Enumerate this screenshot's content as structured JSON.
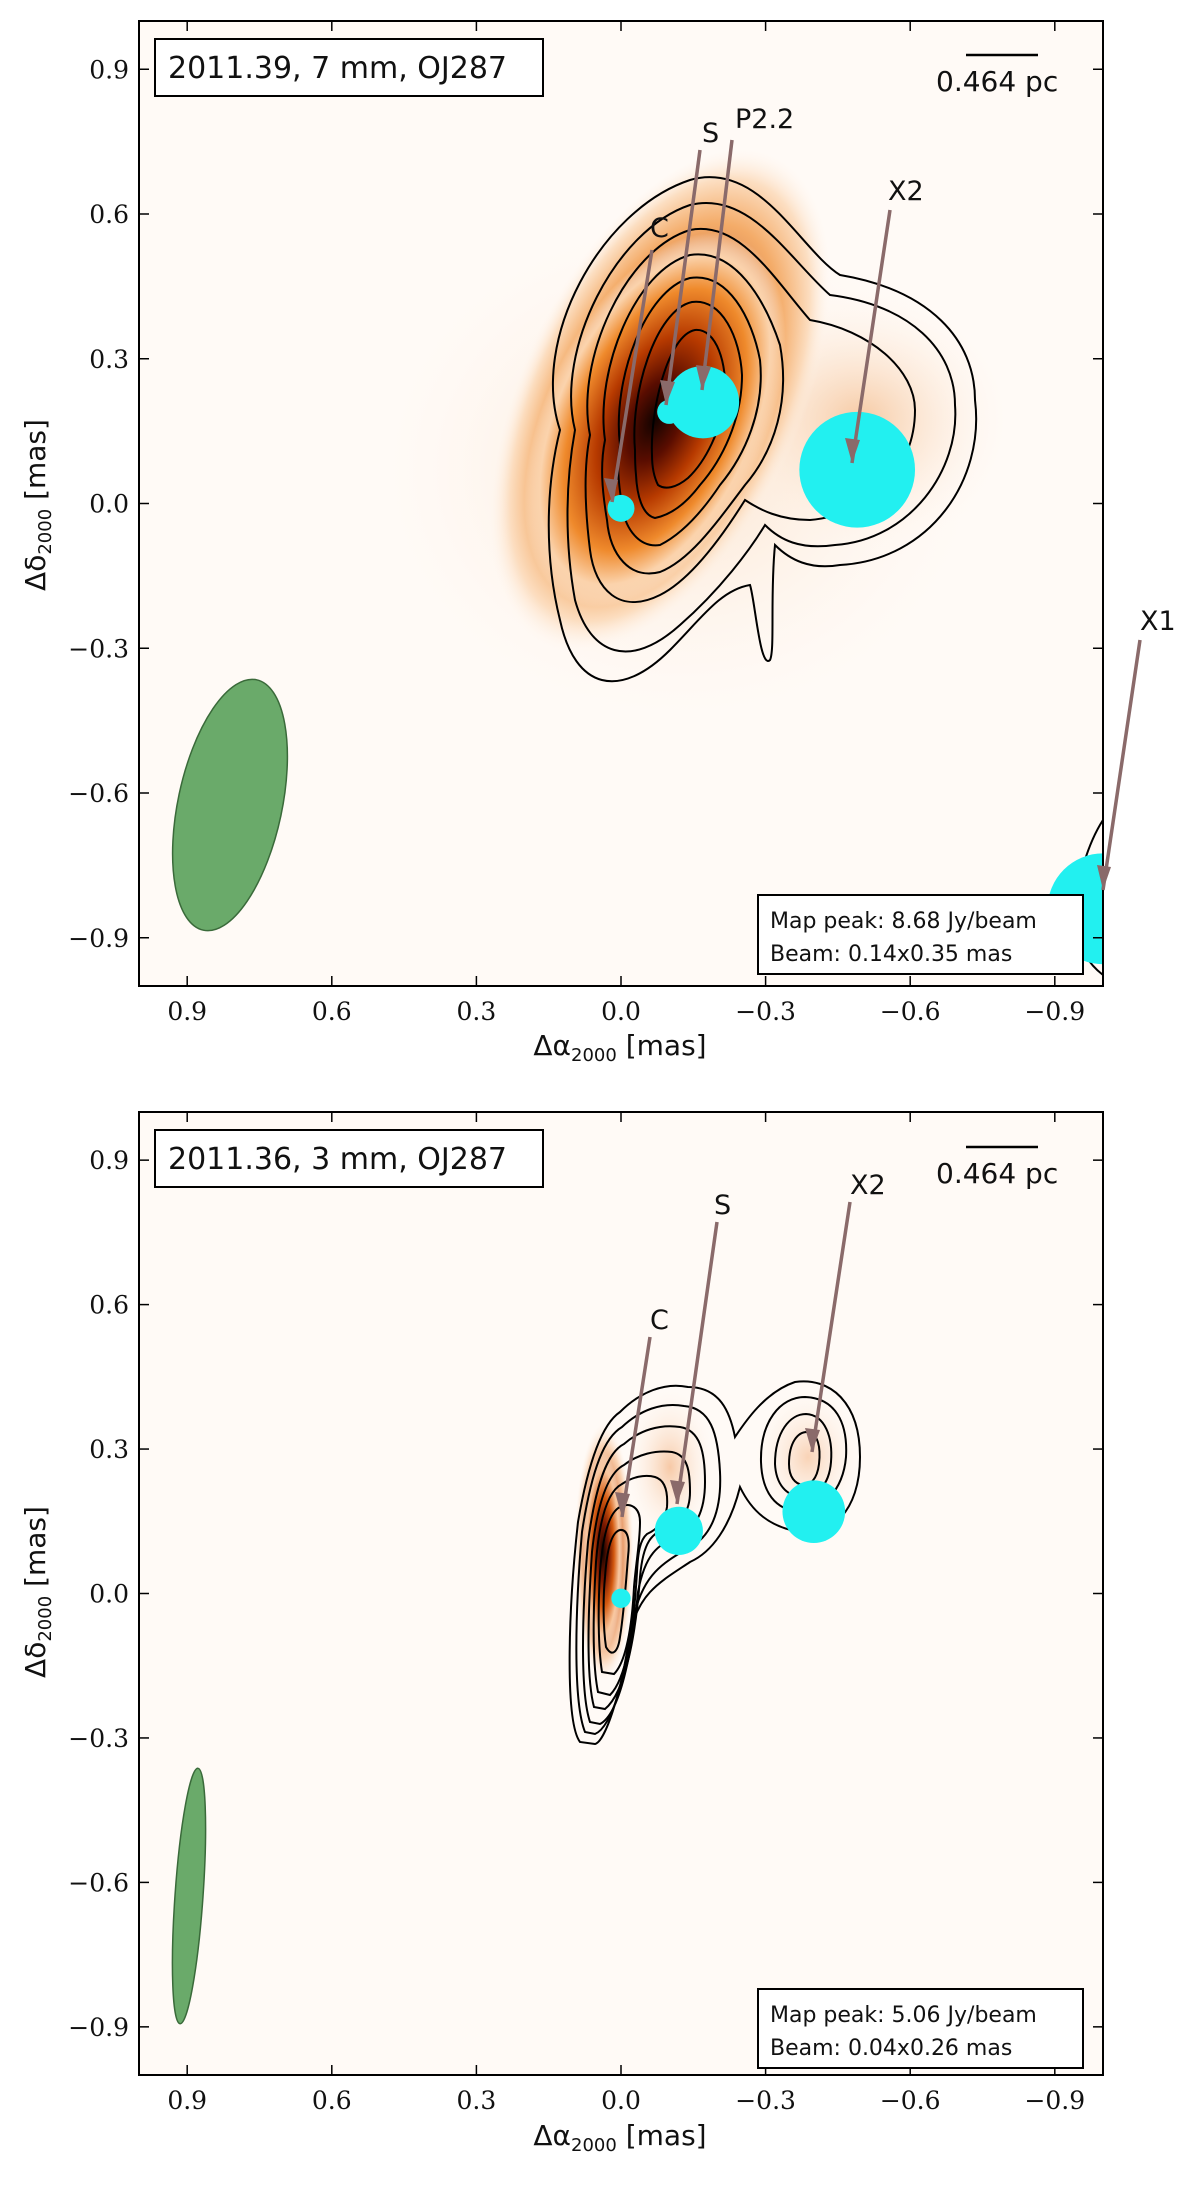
{
  "chart_data": [
    {
      "type": "heatmap",
      "title": "2011.39,  7 mm,  OJ287",
      "scale_bar": "0.464 pc",
      "map_peak": "Map peak: 8.68 Jy/beam",
      "beam": "Beam: 0.14x0.35 mas",
      "xlabel": "Δα2000 [mas]",
      "ylabel": "Δδ2000 [mas]",
      "xlim": [
        1.0,
        -1.0
      ],
      "ylim": [
        -1.0,
        1.0
      ],
      "xticks": [
        0.9,
        0.6,
        0.3,
        0.0,
        -0.3,
        -0.6,
        -0.9
      ],
      "yticks": [
        0.9,
        0.6,
        0.3,
        0.0,
        -0.3,
        -0.6,
        -0.9
      ],
      "xtick_labels": [
        "0.9",
        "0.6",
        "0.3",
        "0.0",
        "−0.3",
        "−0.6",
        "−0.9"
      ],
      "ytick_labels": [
        "0.9",
        "0.6",
        "0.3",
        "0.0",
        "−0.3",
        "−0.6",
        "−0.9"
      ],
      "components": [
        {
          "label": "C",
          "x": 0.0,
          "y": -0.01,
          "r": 0.028
        },
        {
          "label": "S",
          "x": -0.1,
          "y": 0.19,
          "r": 0.025
        },
        {
          "label": "P2.2",
          "x": -0.17,
          "y": 0.21,
          "r": 0.075
        },
        {
          "label": "X2",
          "x": -0.49,
          "y": 0.07,
          "r": 0.12
        },
        {
          "label": "X1",
          "x": -1.0,
          "y": -0.84,
          "r": 0.115
        }
      ],
      "beam_ellipse": {
        "x": 0.8,
        "y": -0.73,
        "minor": 0.14,
        "major": 0.35
      },
      "colormap": "gist_heat_r",
      "contours": true,
      "grid": false
    },
    {
      "type": "heatmap",
      "title": "2011.36,  3 mm,  OJ287",
      "scale_bar": "0.464 pc",
      "map_peak": "Map peak: 5.06 Jy/beam",
      "beam": "Beam: 0.04x0.26 mas",
      "xlabel": "Δα2000 [mas]",
      "ylabel": "Δδ2000 [mas]",
      "xlim": [
        1.0,
        -1.0
      ],
      "ylim": [
        -1.0,
        1.0
      ],
      "xticks": [
        0.9,
        0.6,
        0.3,
        0.0,
        -0.3,
        -0.6,
        -0.9
      ],
      "yticks": [
        0.9,
        0.6,
        0.3,
        0.0,
        -0.3,
        -0.6,
        -0.9
      ],
      "xtick_labels": [
        "0.9",
        "0.6",
        "0.3",
        "0.0",
        "−0.3",
        "−0.6",
        "−0.9"
      ],
      "ytick_labels": [
        "0.9",
        "0.6",
        "0.3",
        "0.0",
        "−0.3",
        "−0.6",
        "−0.9"
      ],
      "components": [
        {
          "label": "C",
          "x": 0.0,
          "y": -0.01,
          "r": 0.02
        },
        {
          "label": "S",
          "x": -0.12,
          "y": 0.13,
          "r": 0.05
        },
        {
          "label": "X2",
          "x": -0.4,
          "y": 0.17,
          "r": 0.065
        }
      ],
      "beam_ellipse": {
        "x": 0.89,
        "y": -0.75,
        "minor": 0.04,
        "major": 0.26
      },
      "colormap": "gist_heat_r",
      "contours": true,
      "grid": false
    }
  ]
}
